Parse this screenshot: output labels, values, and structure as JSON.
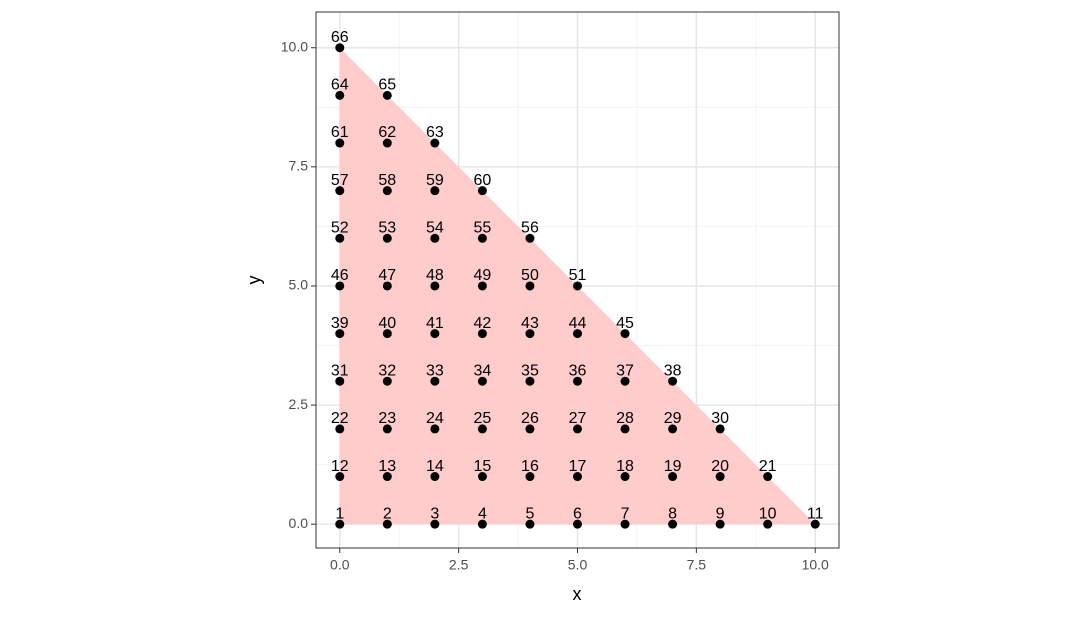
{
  "chart_data": {
    "type": "scatter",
    "x_label": "x",
    "y_label": "y",
    "xlim": [
      -0.5,
      10.5
    ],
    "ylim": [
      -0.5,
      10.75
    ],
    "xticks": [
      {
        "value": 0,
        "label": "0.0"
      },
      {
        "value": 2.5,
        "label": "2.5"
      },
      {
        "value": 5,
        "label": "5.0"
      },
      {
        "value": 7.5,
        "label": "7.5"
      },
      {
        "value": 10,
        "label": "10.0"
      }
    ],
    "yticks": [
      {
        "value": 0,
        "label": "0.0"
      },
      {
        "value": 2.5,
        "label": "2.5"
      },
      {
        "value": 5,
        "label": "5.0"
      },
      {
        "value": 7.5,
        "label": "7.5"
      },
      {
        "value": 10,
        "label": "10.0"
      }
    ],
    "x_minor_grid": [
      1.25,
      3.75,
      6.25,
      8.75
    ],
    "y_minor_grid": [
      1.25,
      3.75,
      6.25,
      8.75
    ],
    "grid": true,
    "polygon": {
      "x": [
        0,
        10,
        0
      ],
      "y": [
        0,
        0,
        10
      ],
      "color": "#ffcccc"
    },
    "color": "#000000",
    "x": [
      0,
      1,
      2,
      3,
      4,
      5,
      6,
      7,
      8,
      9,
      10,
      0,
      1,
      2,
      3,
      4,
      5,
      6,
      7,
      8,
      9,
      0,
      1,
      2,
      3,
      4,
      5,
      6,
      7,
      8,
      0,
      1,
      2,
      3,
      4,
      5,
      6,
      7,
      0,
      1,
      2,
      3,
      4,
      5,
      6,
      0,
      1,
      2,
      3,
      4,
      5,
      0,
      1,
      2,
      3,
      4,
      0,
      1,
      2,
      3,
      0,
      1,
      2,
      0,
      1,
      0
    ],
    "y": [
      0,
      0,
      0,
      0,
      0,
      0,
      0,
      0,
      0,
      0,
      0,
      1,
      1,
      1,
      1,
      1,
      1,
      1,
      1,
      1,
      1,
      2,
      2,
      2,
      2,
      2,
      2,
      2,
      2,
      2,
      3,
      3,
      3,
      3,
      3,
      3,
      3,
      3,
      4,
      4,
      4,
      4,
      4,
      4,
      4,
      5,
      5,
      5,
      5,
      5,
      5,
      6,
      6,
      6,
      6,
      6,
      7,
      7,
      7,
      7,
      8,
      8,
      8,
      9,
      9,
      10
    ],
    "point_labels": [
      1,
      2,
      3,
      4,
      5,
      6,
      7,
      8,
      9,
      10,
      11,
      12,
      13,
      14,
      15,
      16,
      17,
      18,
      19,
      20,
      21,
      22,
      23,
      24,
      25,
      26,
      27,
      28,
      29,
      30,
      31,
      32,
      33,
      34,
      35,
      36,
      37,
      38,
      39,
      40,
      41,
      42,
      43,
      44,
      45,
      46,
      47,
      48,
      49,
      50,
      51,
      52,
      53,
      54,
      55,
      56,
      57,
      58,
      59,
      60,
      61,
      62,
      63,
      64,
      65,
      66
    ]
  }
}
